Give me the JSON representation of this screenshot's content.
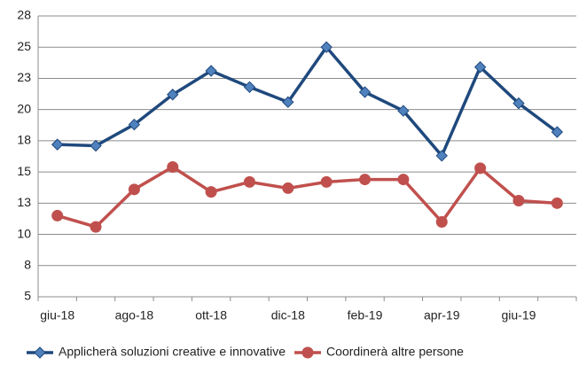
{
  "chart_data": {
    "type": "line",
    "categories": [
      "giu-18",
      null,
      "ago-18",
      null,
      "ott-18",
      null,
      "dic-18",
      null,
      "feb-19",
      null,
      "apr-19",
      null,
      "giu-19",
      null
    ],
    "series": [
      {
        "name": "Applicherà soluzioni creative e innovative",
        "color": "#1f497d",
        "marker": "diamond",
        "values": [
          17.2,
          17.1,
          18.8,
          21.2,
          23.1,
          21.8,
          20.6,
          25.0,
          21.4,
          19.9,
          16.3,
          23.4,
          20.5,
          18.2
        ]
      },
      {
        "name": "Coordinerà altre persone",
        "color": "#c0504d",
        "marker": "circle",
        "values": [
          11.5,
          10.6,
          13.6,
          15.4,
          13.4,
          14.2,
          13.7,
          14.2,
          14.4,
          14.4,
          11.0,
          15.3,
          12.7,
          12.5
        ]
      }
    ],
    "ylim": [
      5,
      27.5
    ],
    "yticks": [
      5,
      {
        "value": 7.5,
        "label": "8"
      },
      10,
      {
        "value": 12.5,
        "label": "13"
      },
      15,
      {
        "value": 17.5,
        "label": "18"
      },
      20,
      {
        "value": 22.5,
        "label": "23"
      },
      25,
      {
        "value": 27.5,
        "label": "28"
      }
    ],
    "grid": true,
    "legend": "bottom"
  }
}
